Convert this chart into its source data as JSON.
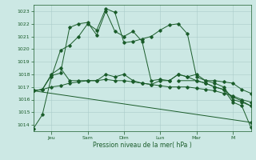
{
  "bg_color": "#cce8e4",
  "grid_color": "#aaccca",
  "line_color": "#1a5c2a",
  "title": "Pression niveau de la mer( hPa )",
  "ylim": [
    1013.5,
    1023.5
  ],
  "yticks": [
    1014,
    1015,
    1016,
    1017,
    1018,
    1019,
    1020,
    1021,
    1022,
    1023
  ],
  "day_labels": [
    "Jeu",
    "Sam",
    "Dim",
    "Lun",
    "Mar",
    "M"
  ],
  "day_positions": [
    24,
    72,
    120,
    168,
    216,
    264
  ],
  "xlim": [
    0,
    288
  ],
  "series1_x": [
    0,
    12,
    24,
    36,
    48,
    60,
    72,
    84,
    96,
    108,
    120,
    132,
    144,
    156,
    168,
    180,
    192,
    204,
    216,
    228,
    240,
    252,
    264,
    276,
    288
  ],
  "series1_y": [
    1013.7,
    1014.8,
    1017.8,
    1019.9,
    1020.3,
    1021.0,
    1022.0,
    1021.5,
    1023.2,
    1022.9,
    1020.5,
    1020.6,
    1020.8,
    1021.0,
    1021.5,
    1021.9,
    1022.0,
    1021.2,
    1017.8,
    1017.5,
    1017.5,
    1017.4,
    1017.3,
    1016.8,
    1016.5
  ],
  "series2_x": [
    0,
    12,
    24,
    36,
    48,
    60,
    72,
    84,
    96,
    108,
    120,
    132,
    144,
    156,
    168,
    180,
    192,
    204,
    216,
    228,
    240,
    252,
    264,
    276,
    288
  ],
  "series2_y": [
    1016.7,
    1016.8,
    1017.9,
    1018.1,
    1021.7,
    1022.0,
    1022.1,
    1021.1,
    1023.0,
    1021.4,
    1021.0,
    1021.4,
    1020.6,
    1017.5,
    1017.6,
    1017.5,
    1018.0,
    1017.8,
    1018.0,
    1017.5,
    1017.3,
    1017.0,
    1016.0,
    1015.8,
    1015.5
  ],
  "series3_x": [
    0,
    12,
    24,
    36,
    48,
    60,
    72,
    84,
    96,
    108,
    120,
    132,
    144,
    156,
    168,
    180,
    192,
    204,
    216,
    228,
    240,
    252,
    264,
    276,
    288
  ],
  "series3_y": [
    1016.7,
    1016.8,
    1017.0,
    1017.1,
    1017.3,
    1017.4,
    1017.5,
    1017.5,
    1017.6,
    1017.5,
    1017.5,
    1017.4,
    1017.3,
    1017.2,
    1017.1,
    1017.0,
    1017.0,
    1017.0,
    1016.9,
    1016.8,
    1016.7,
    1016.5,
    1016.3,
    1016.0,
    1015.8
  ],
  "series4_x": [
    0,
    288
  ],
  "series4_y": [
    1016.7,
    1014.2
  ],
  "series5_x": [
    0,
    12,
    24,
    36,
    48,
    60,
    72,
    84,
    96,
    108,
    120,
    132,
    144,
    156,
    168,
    180,
    192,
    204,
    216,
    228,
    240,
    252,
    264,
    276,
    288
  ],
  "series5_y": [
    1016.7,
    1016.8,
    1018.0,
    1018.5,
    1017.5,
    1017.5,
    1017.5,
    1017.5,
    1018.0,
    1017.8,
    1018.0,
    1017.5,
    1017.3,
    1017.2,
    1017.5,
    1017.5,
    1018.0,
    1017.8,
    1017.5,
    1017.3,
    1017.0,
    1016.8,
    1016.2,
    1015.9,
    1015.5
  ],
  "series6_x": [
    192,
    216,
    228,
    240,
    252,
    264,
    276,
    288
  ],
  "series6_y": [
    1017.5,
    1017.5,
    1017.3,
    1017.0,
    1016.8,
    1015.8,
    1015.5,
    1013.8
  ]
}
